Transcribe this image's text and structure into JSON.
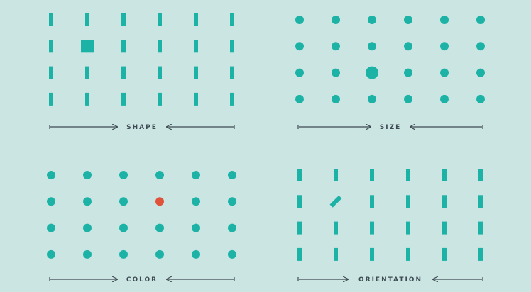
{
  "colors": {
    "background": "#cbe5e3",
    "mark": "#1cb3a6",
    "target": "#e0533b",
    "text": "#3d4a52"
  },
  "panels": [
    {
      "id": "shape",
      "label": "SHAPE",
      "base_mark": "bar",
      "target": {
        "row": 2,
        "col": 2,
        "mark": "square"
      }
    },
    {
      "id": "size",
      "label": "SIZE",
      "base_mark": "dot",
      "target": {
        "row": 3,
        "col": 3,
        "mark": "large-dot"
      }
    },
    {
      "id": "color",
      "label": "COLOR",
      "base_mark": "dot",
      "target": {
        "row": 2,
        "col": 4,
        "mark": "red-dot"
      }
    },
    {
      "id": "orientation",
      "label": "ORIENTATION",
      "base_mark": "bar",
      "target": {
        "row": 2,
        "col": 2,
        "mark": "tilted-bar"
      }
    }
  ]
}
